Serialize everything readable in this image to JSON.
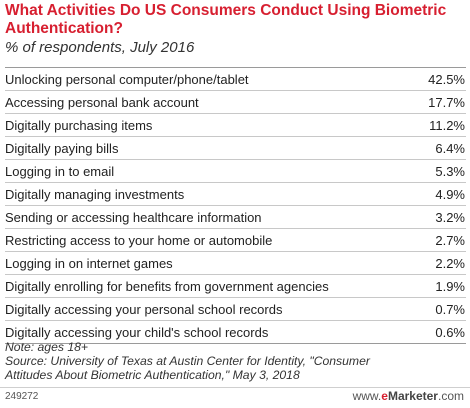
{
  "title": "What Activities Do US Consumers Conduct Using Biometric Authentication?",
  "subtitle": "% of respondents, July 2016",
  "chart_data": {
    "type": "table",
    "title": "What Activities Do US Consumers Conduct Using Biometric Authentication?",
    "subtitle": "% of respondents, July 2016",
    "rows": [
      {
        "label": "Unlocking personal computer/phone/tablet",
        "value": 42.5,
        "display": "42.5%"
      },
      {
        "label": "Accessing personal bank account",
        "value": 17.7,
        "display": "17.7%"
      },
      {
        "label": "Digitally purchasing items",
        "value": 11.2,
        "display": "11.2%"
      },
      {
        "label": "Digitally paying bills",
        "value": 6.4,
        "display": "6.4%"
      },
      {
        "label": "Logging in to email",
        "value": 5.3,
        "display": "5.3%"
      },
      {
        "label": "Digitally managing investments",
        "value": 4.9,
        "display": "4.9%"
      },
      {
        "label": "Sending or accessing healthcare information",
        "value": 3.2,
        "display": "3.2%"
      },
      {
        "label": "Restricting access to your home or automobile",
        "value": 2.7,
        "display": "2.7%"
      },
      {
        "label": "Logging in on internet games",
        "value": 2.2,
        "display": "2.2%"
      },
      {
        "label": "Digitally enrolling for benefits from government agencies",
        "value": 1.9,
        "display": "1.9%"
      },
      {
        "label": "Digitally accessing your personal school records",
        "value": 0.7,
        "display": "0.7%"
      },
      {
        "label": "Digitally accessing your child's school records",
        "value": 0.6,
        "display": "0.6%"
      }
    ]
  },
  "notes": {
    "note": "Note: ages 18+",
    "source_line1": "Source: University of Texas at Austin Center for Identity, \"Consumer",
    "source_line2": "Attitudes About Biometric Authentication,\" May 3, 2018"
  },
  "footer": {
    "chart_id": "249272",
    "brand_prefix": "www.",
    "brand_e": "e",
    "brand_rest": "Marketer",
    "brand_suffix": ".com"
  },
  "colors": {
    "title": "#d71f30",
    "brand_accent": "#d71f30"
  }
}
